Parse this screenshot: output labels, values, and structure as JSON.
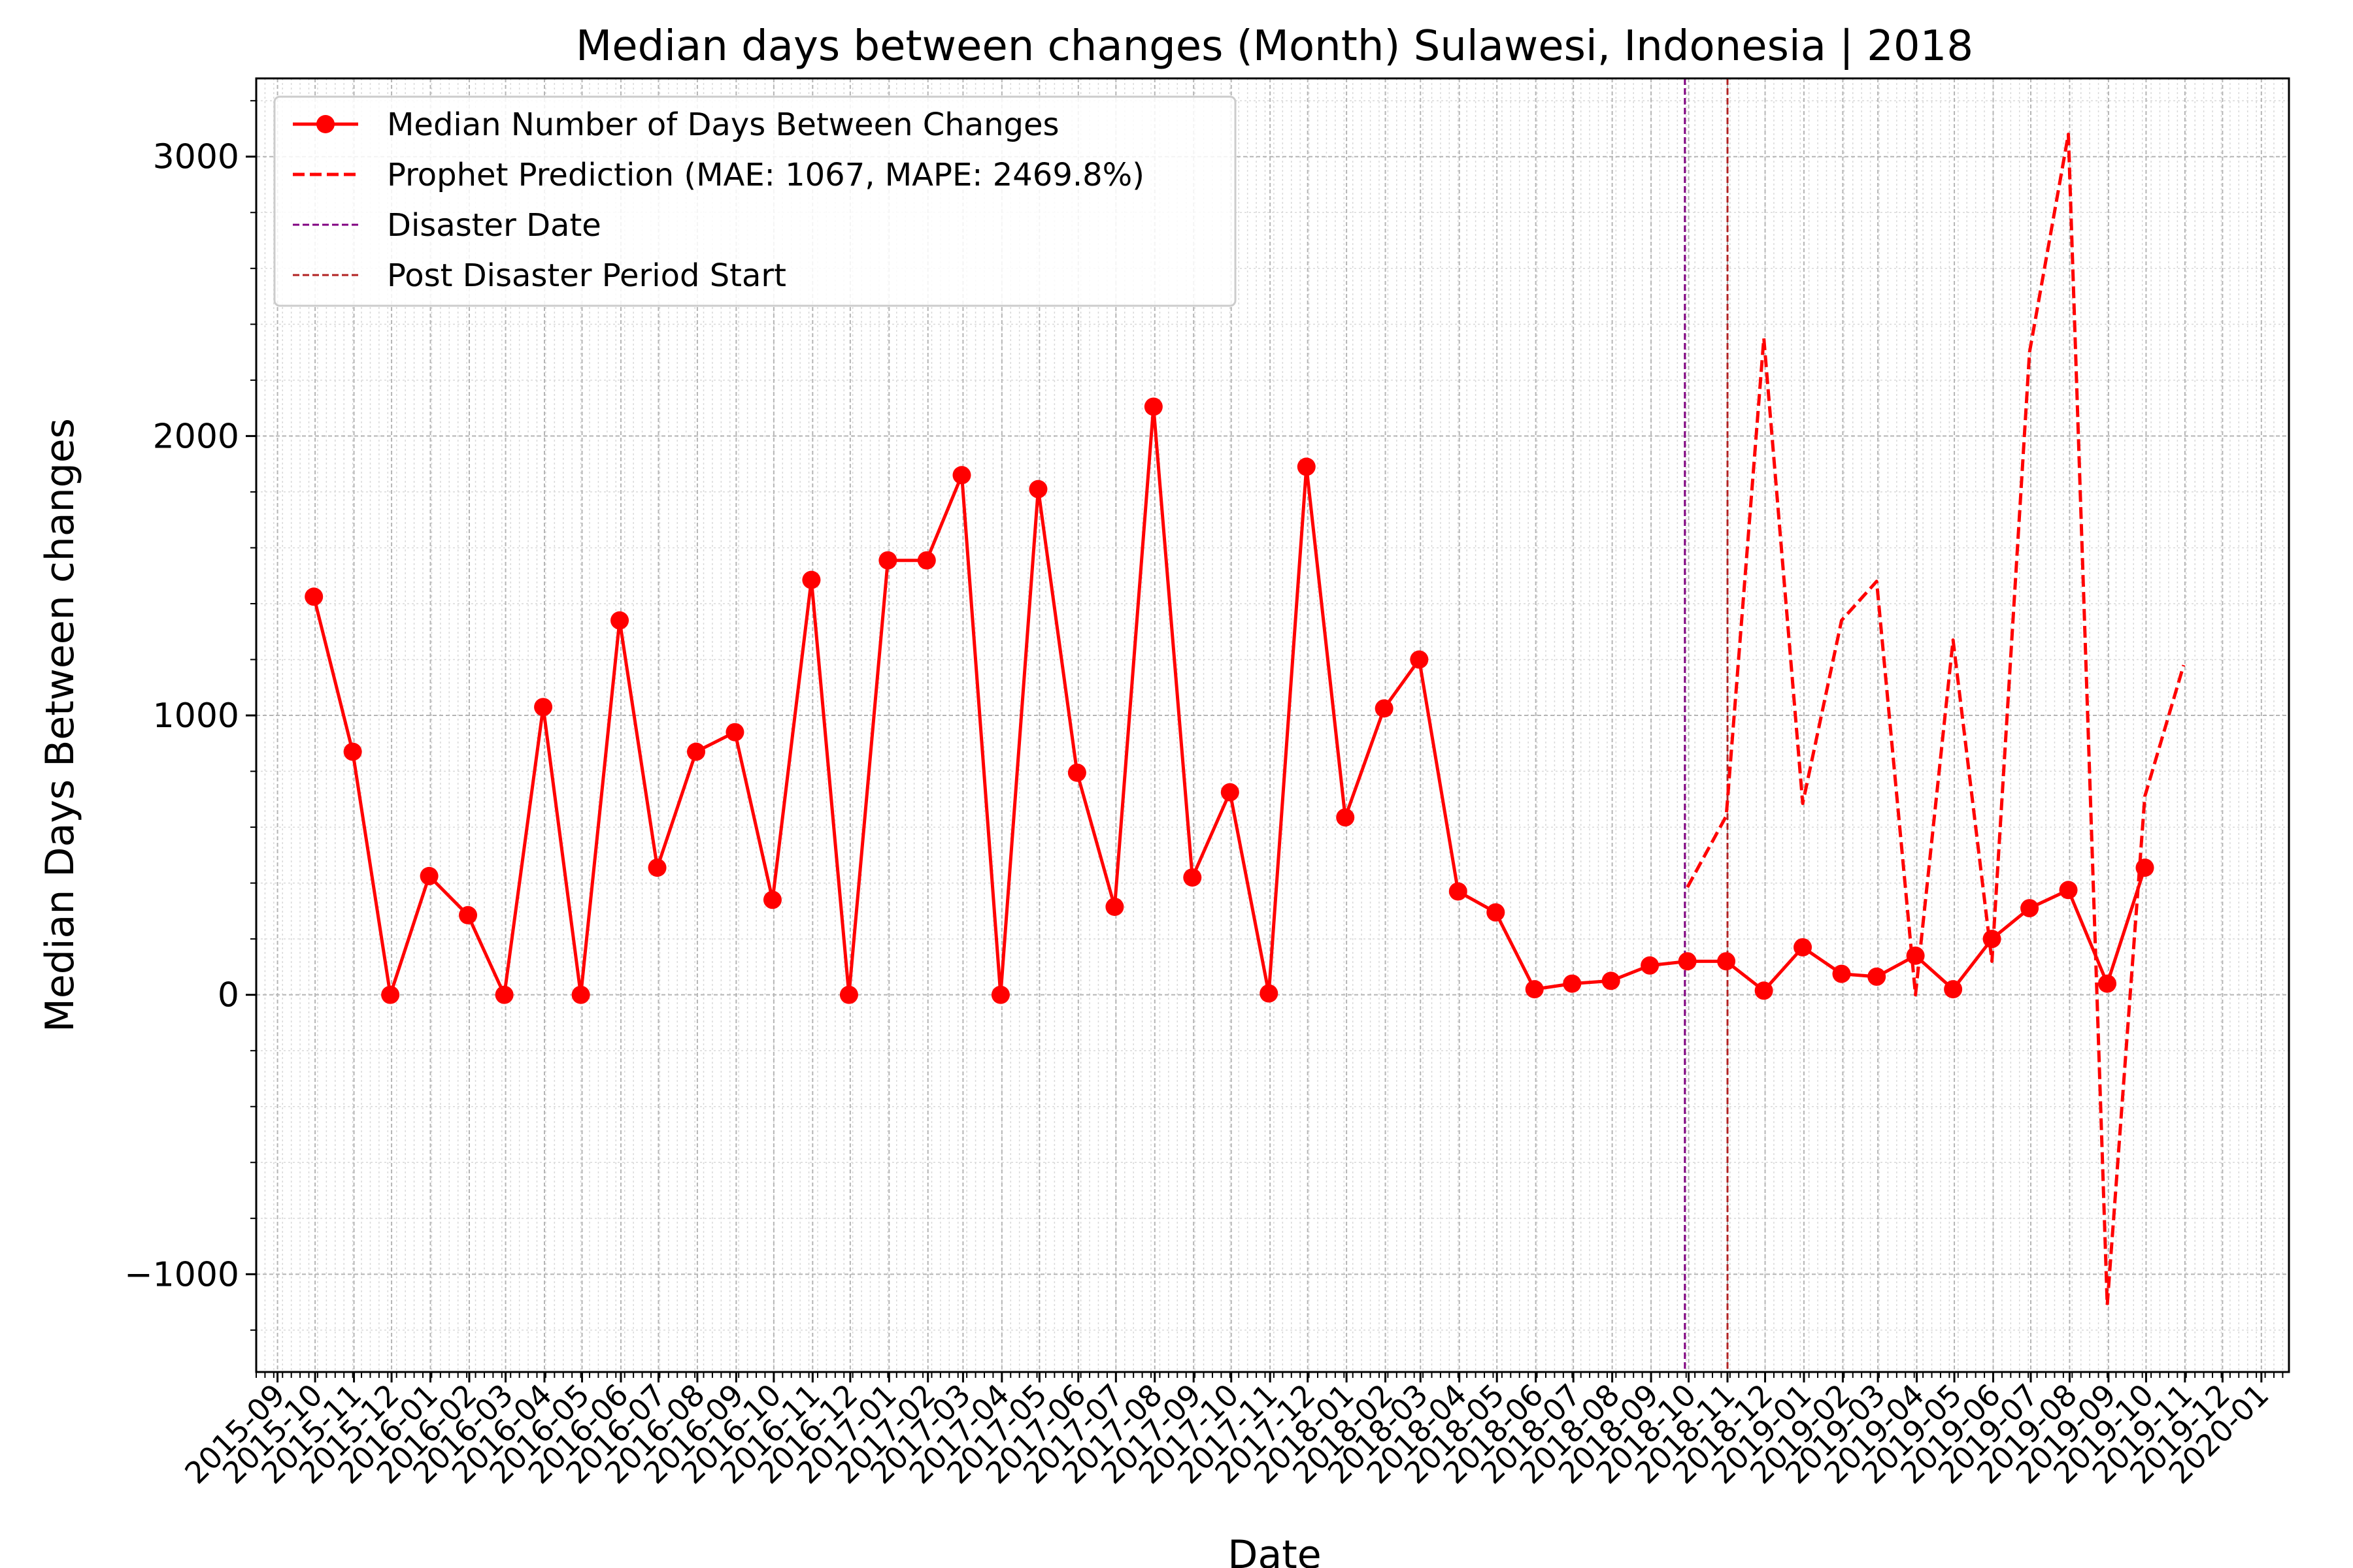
{
  "chart_data": {
    "type": "line",
    "title": "Median days between changes (Month) Sulawesi, Indonesia | 2018",
    "xlabel": "Date",
    "ylabel": "Median Days Between changes",
    "ylim": [
      -1350,
      3280
    ],
    "xlim": [
      "2015-08-15",
      "2020-01-23"
    ],
    "grid": true,
    "legend_position": "top-left",
    "y_ticks": [
      -1000,
      0,
      1000,
      2000,
      3000
    ],
    "y_tick_labels": [
      "−1000",
      "0",
      "1000",
      "2000",
      "3000"
    ],
    "x_ticks": [
      "2015-09",
      "2015-10",
      "2015-11",
      "2015-12",
      "2016-01",
      "2016-02",
      "2016-03",
      "2016-04",
      "2016-05",
      "2016-06",
      "2016-07",
      "2016-08",
      "2016-09",
      "2016-10",
      "2016-11",
      "2016-12",
      "2017-01",
      "2017-02",
      "2017-03",
      "2017-04",
      "2017-05",
      "2017-06",
      "2017-07",
      "2017-08",
      "2017-09",
      "2017-10",
      "2017-11",
      "2017-12",
      "2018-01",
      "2018-02",
      "2018-03",
      "2018-04",
      "2018-05",
      "2018-06",
      "2018-07",
      "2018-08",
      "2018-09",
      "2018-10",
      "2018-11",
      "2018-12",
      "2019-01",
      "2019-02",
      "2019-03",
      "2019-04",
      "2019-05",
      "2019-06",
      "2019-07",
      "2019-08",
      "2019-09",
      "2019-10",
      "2019-11",
      "2019-12",
      "2020-01"
    ],
    "series": [
      {
        "name": "Median Number of Days Between Changes",
        "style": "solid-markers",
        "color": "#ff0000",
        "x": [
          "2015-09-30",
          "2015-10-31",
          "2015-11-30",
          "2015-12-31",
          "2016-01-31",
          "2016-02-29",
          "2016-03-31",
          "2016-04-30",
          "2016-05-31",
          "2016-06-30",
          "2016-07-31",
          "2016-08-31",
          "2016-09-30",
          "2016-10-31",
          "2016-11-30",
          "2016-12-31",
          "2017-01-31",
          "2017-02-28",
          "2017-03-31",
          "2017-04-30",
          "2017-05-31",
          "2017-06-30",
          "2017-07-31",
          "2017-08-31",
          "2017-09-30",
          "2017-10-31",
          "2017-11-30",
          "2017-12-31",
          "2018-01-31",
          "2018-02-28",
          "2018-03-31",
          "2018-04-30",
          "2018-05-31",
          "2018-06-30",
          "2018-07-31",
          "2018-08-31",
          "2018-09-30",
          "2018-10-31",
          "2018-11-30",
          "2018-12-31",
          "2019-01-31",
          "2019-02-28",
          "2019-03-31",
          "2019-04-30",
          "2019-05-31",
          "2019-06-30",
          "2019-07-31",
          "2019-08-31",
          "2019-09-30"
        ],
        "y": [
          1425,
          870,
          0,
          425,
          285,
          0,
          1030,
          0,
          1340,
          455,
          870,
          940,
          340,
          1485,
          0,
          1555,
          1555,
          1860,
          0,
          1810,
          795,
          315,
          2105,
          420,
          725,
          5,
          1890,
          635,
          1025,
          1200,
          370,
          295,
          20,
          40,
          50,
          105,
          120,
          120,
          15,
          170,
          75,
          65,
          140,
          20,
          200,
          310,
          375,
          40,
          455
        ]
      },
      {
        "name": "Prophet Prediction (MAE: 1067, MAPE: 2469.8%)",
        "style": "dashed",
        "color": "#ff0000",
        "x": [
          "2018-09-30",
          "2018-10-31",
          "2018-11-30",
          "2018-12-31",
          "2019-01-31",
          "2019-02-28",
          "2019-03-31",
          "2019-04-30",
          "2019-05-31",
          "2019-06-30",
          "2019-07-31",
          "2019-08-31",
          "2019-09-30",
          "2019-10-31"
        ],
        "y": [
          385,
          640,
          2350,
          685,
          1340,
          1480,
          0,
          1270,
          120,
          2300,
          3080,
          -1110,
          710,
          1180
        ]
      }
    ],
    "vertical_lines": [
      {
        "name": "Disaster Date",
        "x": "2018-09-28",
        "color": "#800080",
        "style": "dashed"
      },
      {
        "name": "Post Disaster Period Start",
        "x": "2018-11-01",
        "color": "#b22222",
        "style": "dashed"
      }
    ]
  }
}
